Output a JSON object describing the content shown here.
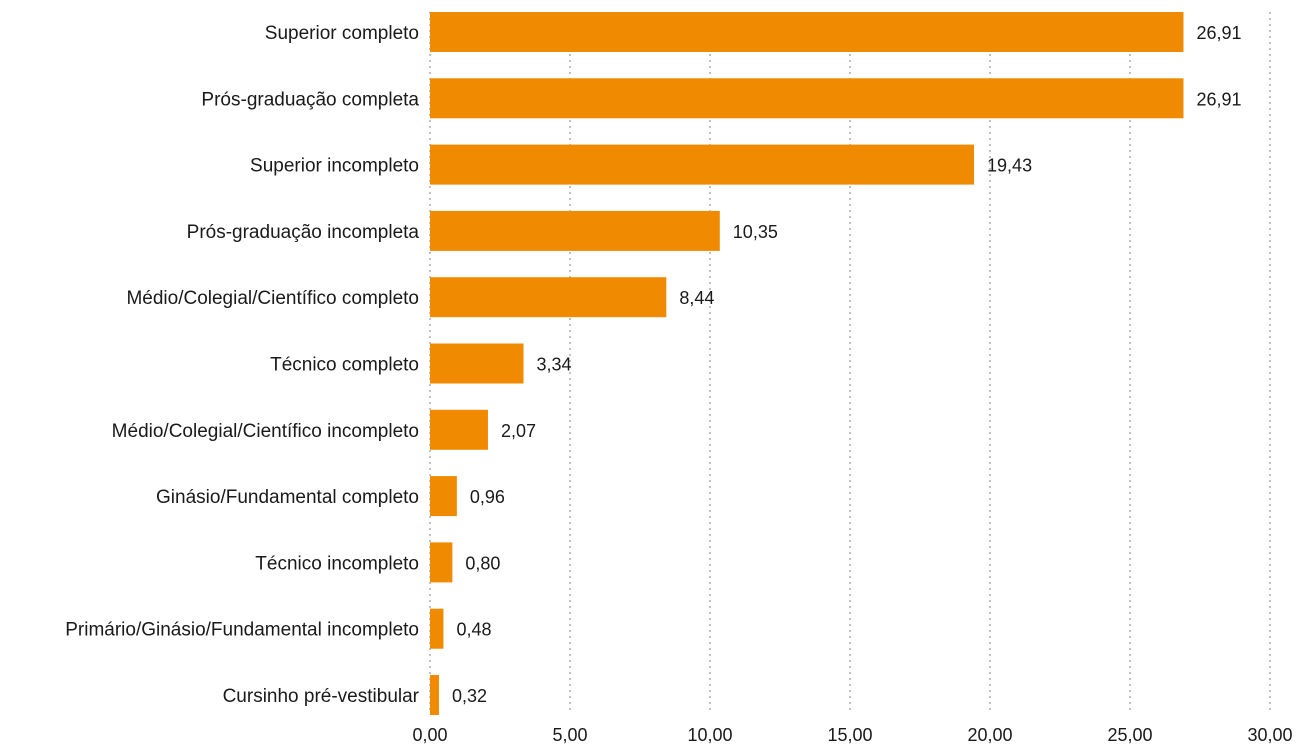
{
  "chart_data": {
    "type": "bar",
    "orientation": "horizontal",
    "categories": [
      "Superior completo",
      "Prós-graduação completa",
      "Superior incompleto",
      "Prós-graduação incompleta",
      "Médio/Colegial/Científico completo",
      "Técnico completo",
      "Médio/Colegial/Científico incompleto",
      "Ginásio/Fundamental completo",
      "Técnico incompleto",
      "Primário/Ginásio/Fundamental incompleto",
      "Cursinho pré-vestibular"
    ],
    "values": [
      26.91,
      26.91,
      19.43,
      10.35,
      8.44,
      3.34,
      2.07,
      0.96,
      0.8,
      0.48,
      0.32
    ],
    "value_labels": [
      "26,91",
      "26,91",
      "19,43",
      "10,35",
      "8,44",
      "3,34",
      "2,07",
      "0,96",
      "0,80",
      "0,48",
      "0,32"
    ],
    "x_ticks": [
      0,
      5,
      10,
      15,
      20,
      25,
      30
    ],
    "x_tick_labels": [
      "0,00",
      "5,00",
      "10,00",
      "15,00",
      "20,00",
      "25,00",
      "30,00"
    ],
    "xlim": [
      0,
      30
    ],
    "grid": "vertical-dotted",
    "legend": "none",
    "title": "",
    "xlabel": "",
    "ylabel": "",
    "colors": {
      "bar": "#f08a00",
      "grid": "#b3b3b3",
      "text": "#1a1a1a"
    }
  }
}
